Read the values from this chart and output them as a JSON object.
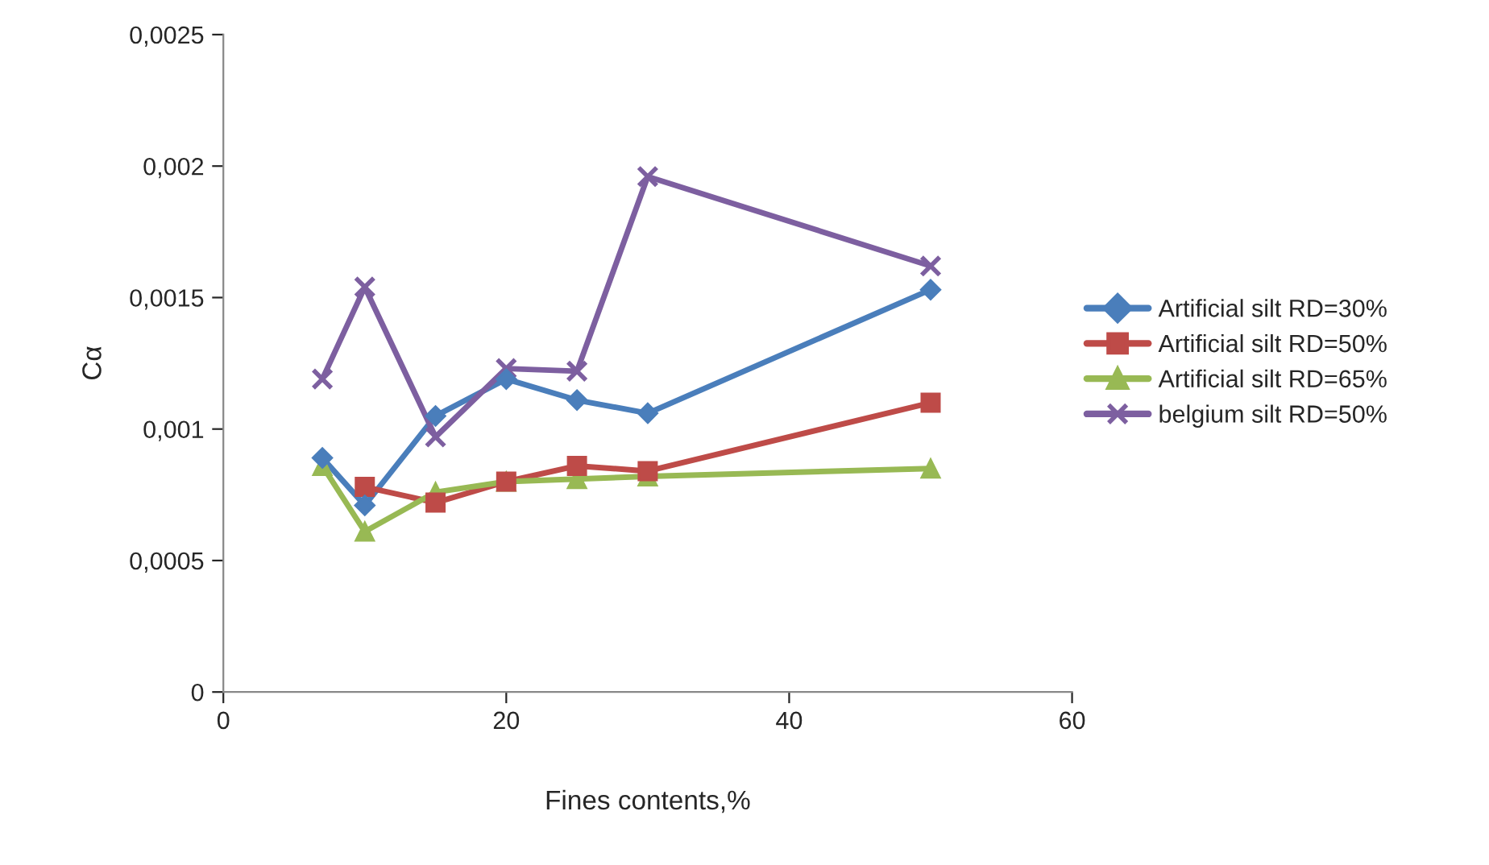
{
  "chart_data": {
    "type": "line",
    "xlabel": "Fines contents,%",
    "ylabel": "Cα",
    "x": [
      7,
      10,
      15,
      20,
      25,
      30,
      50
    ],
    "series": [
      {
        "name": "Artificial silt RD=30%",
        "color": "#4a7ebb",
        "marker": "diamond",
        "values": [
          0.00089,
          0.00071,
          0.00105,
          0.00119,
          0.00111,
          0.00106,
          0.00153
        ]
      },
      {
        "name": "Artificial silt RD=50%",
        "color": "#be4b48",
        "marker": "square",
        "values": [
          null,
          0.00078,
          0.00072,
          0.0008,
          0.00086,
          0.00084,
          0.0011
        ]
      },
      {
        "name": "Artificial silt RD=65%",
        "color": "#98b954",
        "marker": "triangle",
        "values": [
          0.00086,
          0.00061,
          0.00076,
          0.0008,
          0.00081,
          0.00082,
          0.00085
        ]
      },
      {
        "name": "belgium silt RD=50%",
        "color": "#7d5fa0",
        "marker": "cross",
        "values": [
          0.00119,
          0.00154,
          0.00097,
          0.00123,
          0.00122,
          0.00196,
          0.00162
        ]
      }
    ],
    "xlim": [
      0,
      60
    ],
    "xticks": [
      0,
      20,
      40,
      60
    ],
    "ylim": [
      0,
      0.0025
    ],
    "yticks": [
      {
        "value": 0,
        "label": "0"
      },
      {
        "value": 0.0005,
        "label": "0,0005"
      },
      {
        "value": 0.001,
        "label": "0,001"
      },
      {
        "value": 0.0015,
        "label": "0,0015"
      },
      {
        "value": 0.002,
        "label": "0,002"
      },
      {
        "value": 0.0025,
        "label": "0,0025"
      }
    ],
    "grid": false,
    "legend": "right",
    "line_style": "solid"
  }
}
